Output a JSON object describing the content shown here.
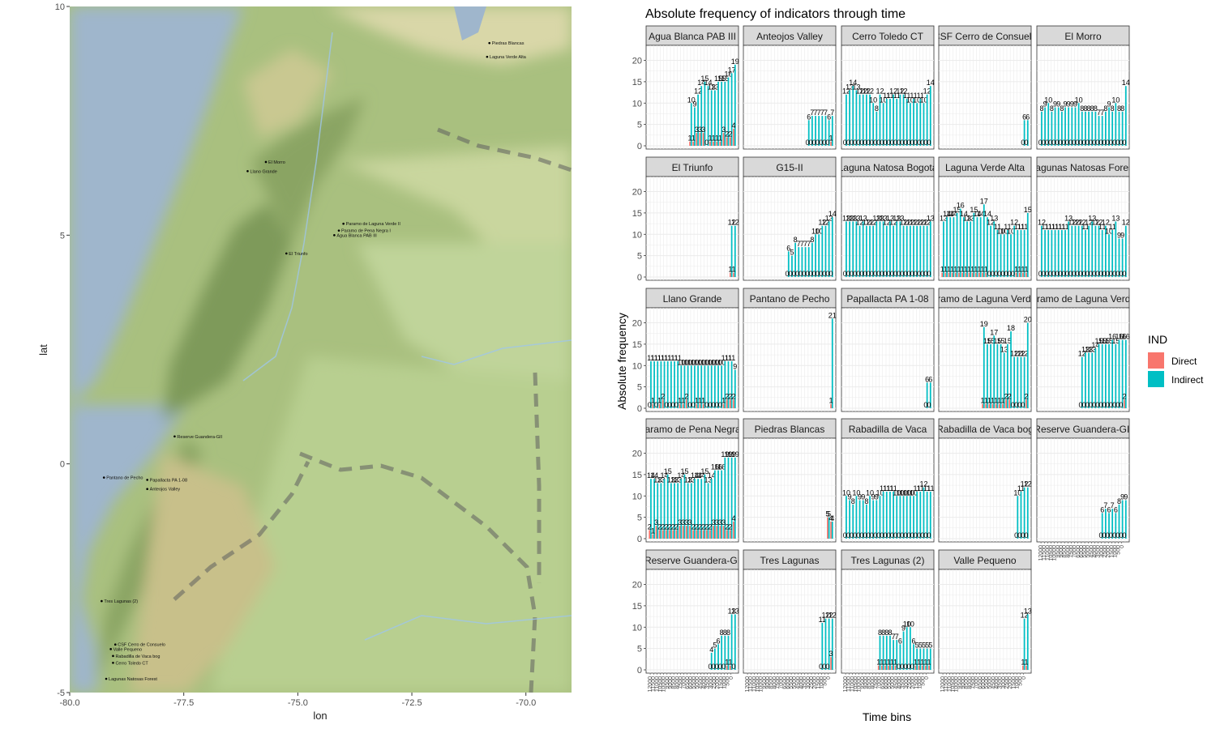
{
  "map": {
    "xlabel": "lon",
    "ylabel": "lat",
    "xlim": [
      -80,
      -69
    ],
    "ylim": [
      -5,
      10
    ],
    "xticks": [
      -80.0,
      -77.5,
      -75.0,
      -72.5,
      -70.0
    ],
    "xtick_labels": [
      "-80.0",
      "-77.5",
      "-75.0",
      "-72.5",
      "-70.0"
    ],
    "yticks": [
      -5,
      0,
      5,
      10
    ],
    "ytick_labels": [
      "-5",
      "0",
      "5",
      "10"
    ],
    "sites": [
      {
        "name": "Piedras Blancas",
        "lon": -70.8,
        "lat": 9.2
      },
      {
        "name": "Laguna Verde Alta",
        "lon": -70.85,
        "lat": 8.9
      },
      {
        "name": "El Morro",
        "lon": -75.7,
        "lat": 6.6
      },
      {
        "name": "Llano Grande",
        "lon": -76.1,
        "lat": 6.4
      },
      {
        "name": "Paramo de Laguna Verde II",
        "lon": -74.0,
        "lat": 5.25
      },
      {
        "name": "Paramo de Pena Negra I",
        "lon": -74.1,
        "lat": 5.1
      },
      {
        "name": "Agua Blanca PAB III",
        "lon": -74.2,
        "lat": 5.0
      },
      {
        "name": "El Triunfo",
        "lon": -75.25,
        "lat": 4.6
      },
      {
        "name": "Reserve Guandera-GII",
        "lon": -77.7,
        "lat": 0.6
      },
      {
        "name": "Pantano de Pecho",
        "lon": -79.25,
        "lat": -0.3
      },
      {
        "name": "Papallacta PA 1-08",
        "lon": -78.3,
        "lat": -0.35
      },
      {
        "name": "Anteojos Valley",
        "lon": -78.3,
        "lat": -0.55
      },
      {
        "name": "Tres Lagunas (2)",
        "lon": -79.3,
        "lat": -3.0
      },
      {
        "name": "CSF Cerro de Consuelo",
        "lon": -79.0,
        "lat": -3.95
      },
      {
        "name": "Valle Pequeno",
        "lon": -79.1,
        "lat": -4.05
      },
      {
        "name": "Rabadilla de Vaca bog",
        "lon": -79.05,
        "lat": -4.2
      },
      {
        "name": "Cerro Toledo CT",
        "lon": -79.05,
        "lat": -4.35
      },
      {
        "name": "Lagunas Natosas Forest",
        "lon": -79.2,
        "lat": -4.7
      }
    ]
  },
  "colors": {
    "direct": "#F8766D",
    "indirect": "#00BFC4",
    "strip": "#D9D9D9",
    "water": "#9fb6cc",
    "grid": "#EBEBEB"
  },
  "chart_data": {
    "type": "bar",
    "title": "Absolute frequency of indicators through time",
    "xlabel": "Time bins",
    "ylabel": "Absolute frequency",
    "ylim": [
      0,
      22
    ],
    "yticks": [
      0,
      5,
      10,
      15,
      20
    ],
    "legend": {
      "title": "IND",
      "placement": "right",
      "entries": [
        "Direct",
        "Indirect"
      ]
    },
    "n_bins": 26,
    "x_tick_labels": [
      "12000",
      "11500",
      "11000",
      "10500",
      "10000",
      "9500",
      "9000",
      "8500",
      "8000",
      "7500",
      "7000",
      "6500",
      "6000",
      "5500",
      "5000",
      "4500",
      "4000",
      "3500",
      "3000",
      "2500",
      "2000",
      "1500",
      "1000",
      "500",
      "0"
    ],
    "facets": [
      {
        "title": "Agua Blanca PAB III",
        "start": 12,
        "direct": [
          1,
          1,
          3,
          3,
          3,
          0,
          1,
          1,
          1,
          1,
          3,
          2,
          2,
          4
        ],
        "indirect": [
          10,
          9,
          12,
          14,
          15,
          14,
          13,
          13,
          15,
          15,
          15,
          16,
          17,
          19
        ]
      },
      {
        "title": "Anteojos Valley",
        "start": 18,
        "direct": [
          0,
          0,
          0,
          0,
          0,
          0,
          0,
          1
        ],
        "indirect": [
          6,
          7,
          7,
          7,
          7,
          7,
          6,
          7
        ]
      },
      {
        "title": "Cerro Toledo CT",
        "start": 0,
        "direct": [
          0,
          0,
          0,
          0,
          0,
          0,
          0,
          0,
          0,
          0,
          0,
          0,
          0,
          0,
          0,
          0,
          0,
          0,
          0,
          0,
          0,
          0,
          0,
          0,
          0,
          0
        ],
        "indirect": [
          12,
          13,
          14,
          13,
          12,
          12,
          12,
          12,
          10,
          8,
          12,
          10,
          11,
          11,
          12,
          11,
          12,
          12,
          11,
          10,
          11,
          10,
          11,
          10,
          12,
          14
        ]
      },
      {
        "title": "CSF Cerro de Consuelo",
        "start": 24,
        "direct": [
          0,
          0
        ],
        "indirect": [
          6,
          6
        ]
      },
      {
        "title": "El Morro",
        "start": 0,
        "direct": [
          0,
          0,
          0,
          0,
          0,
          0,
          0,
          0,
          0,
          0,
          0,
          0,
          0,
          0,
          0,
          0,
          0,
          0,
          0,
          0,
          0,
          0,
          0,
          0,
          0,
          0
        ],
        "indirect": [
          8,
          9,
          10,
          8,
          9,
          9,
          8,
          9,
          9,
          9,
          9,
          10,
          8,
          8,
          8,
          8,
          8,
          7,
          7,
          8,
          9,
          8,
          10,
          8,
          8,
          14
        ]
      },
      {
        "title": "El Triunfo",
        "start": 24,
        "direct": [
          1,
          1
        ],
        "indirect": [
          12,
          12
        ]
      },
      {
        "title": "G15-II",
        "start": 12,
        "direct": [
          0,
          0,
          0,
          0,
          0,
          0,
          0,
          0,
          0,
          0,
          0,
          0,
          0,
          0
        ],
        "indirect": [
          6,
          5,
          8,
          7,
          7,
          7,
          7,
          8,
          10,
          10,
          12,
          12,
          13,
          14
        ]
      },
      {
        "title": "Laguna Natosa Bogota",
        "start": 0,
        "direct": [
          0,
          0,
          0,
          0,
          0,
          0,
          0,
          0,
          0,
          0,
          0,
          0,
          0,
          0,
          0,
          0,
          0,
          0,
          0,
          0,
          0,
          0,
          0,
          0,
          0,
          0
        ],
        "indirect": [
          13,
          13,
          13,
          13,
          12,
          13,
          12,
          12,
          12,
          13,
          13,
          13,
          12,
          13,
          12,
          13,
          13,
          12,
          12,
          12,
          12,
          12,
          12,
          12,
          12,
          13
        ]
      },
      {
        "title": "Laguna Verde Alta",
        "start": 0,
        "direct": [
          1,
          1,
          1,
          1,
          1,
          1,
          1,
          1,
          1,
          1,
          1,
          1,
          1,
          1,
          0,
          0,
          0,
          0,
          0,
          0,
          0,
          0,
          1,
          1,
          1,
          1
        ],
        "indirect": [
          13,
          14,
          14,
          14,
          15,
          16,
          14,
          13,
          13,
          15,
          14,
          14,
          17,
          14,
          12,
          13,
          11,
          10,
          10,
          11,
          10,
          12,
          11,
          11,
          11,
          15
        ]
      },
      {
        "title": "Lagunas Natosas Forest",
        "start": 0,
        "direct": [
          0,
          0,
          0,
          0,
          0,
          0,
          0,
          0,
          0,
          0,
          0,
          0,
          0,
          0,
          0,
          0,
          0,
          0,
          0,
          0,
          0,
          0,
          0,
          0,
          0,
          0
        ],
        "indirect": [
          12,
          11,
          11,
          11,
          11,
          11,
          11,
          11,
          13,
          12,
          12,
          12,
          12,
          11,
          12,
          13,
          12,
          12,
          11,
          12,
          10,
          11,
          13,
          9,
          9,
          12
        ]
      },
      {
        "title": "Llano Grande",
        "start": 0,
        "direct": [
          0,
          1,
          0,
          1,
          2,
          0,
          0,
          0,
          0,
          1,
          1,
          2,
          0,
          0,
          1,
          1,
          1,
          0,
          0,
          0,
          0,
          0,
          1,
          2,
          2,
          2
        ],
        "indirect": [
          11,
          11,
          11,
          11,
          11,
          11,
          11,
          11,
          11,
          10,
          10,
          10,
          10,
          10,
          10,
          10,
          10,
          10,
          10,
          10,
          10,
          10,
          11,
          11,
          11,
          9
        ]
      },
      {
        "title": "Pantano de Pecho",
        "start": 25,
        "direct": [
          1
        ],
        "indirect": [
          21
        ]
      },
      {
        "title": "Papallacta PA 1-08",
        "start": 24,
        "direct": [
          0,
          0
        ],
        "indirect": [
          6,
          6
        ]
      },
      {
        "title": "Paramo de Laguna Verde II",
        "start": 12,
        "direct": [
          1,
          1,
          1,
          1,
          1,
          1,
          1,
          2,
          2,
          0,
          0,
          0,
          0,
          2
        ],
        "indirect": [
          19,
          15,
          15,
          17,
          15,
          15,
          13,
          15,
          18,
          12,
          12,
          12,
          12,
          20
        ]
      },
      {
        "title": "Paramo de Laguna Verde I",
        "start": 12,
        "direct": [
          0,
          0,
          0,
          0,
          0,
          0,
          0,
          0,
          0,
          0,
          0,
          0,
          0,
          2
        ],
        "indirect": [
          12,
          13,
          13,
          13,
          14,
          15,
          15,
          15,
          15,
          16,
          15,
          16,
          16,
          16
        ]
      },
      {
        "title": "Paramo de Pena Negra I",
        "start": 0,
        "direct": [
          2,
          1,
          3,
          2,
          2,
          2,
          2,
          2,
          2,
          3,
          3,
          3,
          3,
          2,
          2,
          2,
          2,
          2,
          2,
          3,
          3,
          3,
          3,
          2,
          2,
          4
        ],
        "indirect": [
          14,
          14,
          13,
          13,
          14,
          15,
          13,
          13,
          13,
          14,
          15,
          13,
          13,
          14,
          14,
          14,
          15,
          13,
          14,
          16,
          16,
          16,
          19,
          19,
          19,
          19
        ]
      },
      {
        "title": "Piedras Blancas",
        "start": 24,
        "direct": [
          5,
          4
        ],
        "indirect": [
          5,
          4
        ]
      },
      {
        "title": "Rabadilla de Vaca",
        "start": 0,
        "direct": [
          0,
          0,
          0,
          0,
          0,
          0,
          0,
          0,
          0,
          0,
          0,
          0,
          0,
          0,
          0,
          0,
          0,
          0,
          0,
          0,
          0,
          0,
          0,
          0,
          0,
          0
        ],
        "indirect": [
          10,
          9,
          8,
          10,
          9,
          9,
          8,
          10,
          9,
          9,
          10,
          11,
          11,
          11,
          11,
          10,
          10,
          10,
          10,
          10,
          10,
          11,
          11,
          12,
          11,
          11
        ]
      },
      {
        "title": "Rabadilla de Vaca bog",
        "start": 22,
        "direct": [
          0,
          0,
          0,
          0
        ],
        "indirect": [
          10,
          11,
          12,
          12
        ]
      },
      {
        "title": "Reserve Guandera-GII",
        "start": 18,
        "direct": [
          0,
          0,
          0,
          0,
          0,
          0,
          0,
          0
        ],
        "indirect": [
          6,
          7,
          6,
          7,
          6,
          8,
          9,
          9
        ]
      },
      {
        "title": "Reserve Guandera-GI",
        "start": 18,
        "direct": [
          0,
          0,
          0,
          0,
          0,
          1,
          1,
          0
        ],
        "indirect": [
          4,
          5,
          6,
          8,
          8,
          8,
          13,
          13
        ]
      },
      {
        "title": "Tres Lagunas",
        "start": 22,
        "direct": [
          0,
          0,
          0,
          3
        ],
        "indirect": [
          11,
          12,
          12,
          12
        ]
      },
      {
        "title": "Tres Lagunas (2)",
        "start": 10,
        "direct": [
          1,
          1,
          1,
          1,
          1,
          1,
          0,
          0,
          0,
          0,
          0,
          1,
          1,
          1,
          1,
          1
        ],
        "indirect": [
          8,
          8,
          8,
          8,
          7,
          7,
          6,
          9,
          10,
          10,
          6,
          5,
          5,
          5,
          5,
          5
        ]
      },
      {
        "title": "Valle Pequeno",
        "start": 24,
        "direct": [
          1,
          1
        ],
        "indirect": [
          12,
          13
        ]
      }
    ]
  }
}
